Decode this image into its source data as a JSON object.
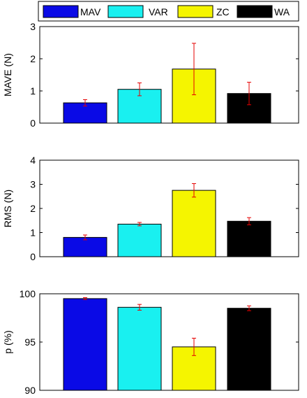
{
  "legend": {
    "items": [
      {
        "label": "MAV",
        "color": "#0a0ae6"
      },
      {
        "label": "VAR",
        "color": "#19f0f0"
      },
      {
        "label": "ZC",
        "color": "#f5f500"
      },
      {
        "label": "WA",
        "color": "#000000"
      }
    ]
  },
  "error_bar_color": "#e60000",
  "chart_data": [
    {
      "type": "bar",
      "categories": [
        "MAV",
        "VAR",
        "ZC",
        "WA"
      ],
      "colors": [
        "#0a0ae6",
        "#19f0f0",
        "#f5f500",
        "#000000"
      ],
      "values": [
        0.63,
        1.05,
        1.68,
        0.92
      ],
      "errors": [
        0.1,
        0.2,
        0.8,
        0.35
      ],
      "ylabel": "MAVE (N)",
      "ylim": [
        0,
        3
      ],
      "yticks": [
        0,
        1,
        2,
        3
      ]
    },
    {
      "type": "bar",
      "categories": [
        "MAV",
        "VAR",
        "ZC",
        "WA"
      ],
      "colors": [
        "#0a0ae6",
        "#19f0f0",
        "#f5f500",
        "#000000"
      ],
      "values": [
        0.8,
        1.35,
        2.75,
        1.47
      ],
      "errors": [
        0.1,
        0.07,
        0.28,
        0.15
      ],
      "ylabel": "RMS (N)",
      "ylim": [
        0,
        4
      ],
      "yticks": [
        0,
        1,
        2,
        3,
        4
      ]
    },
    {
      "type": "bar",
      "categories": [
        "MAV",
        "VAR",
        "ZC",
        "WA"
      ],
      "colors": [
        "#0a0ae6",
        "#19f0f0",
        "#f5f500",
        "#000000"
      ],
      "values": [
        99.5,
        98.6,
        94.5,
        98.5
      ],
      "errors": [
        0.1,
        0.3,
        0.9,
        0.25
      ],
      "ylabel": "p (%)",
      "ylim": [
        90,
        100
      ],
      "yticks": [
        90,
        95,
        100
      ]
    }
  ]
}
